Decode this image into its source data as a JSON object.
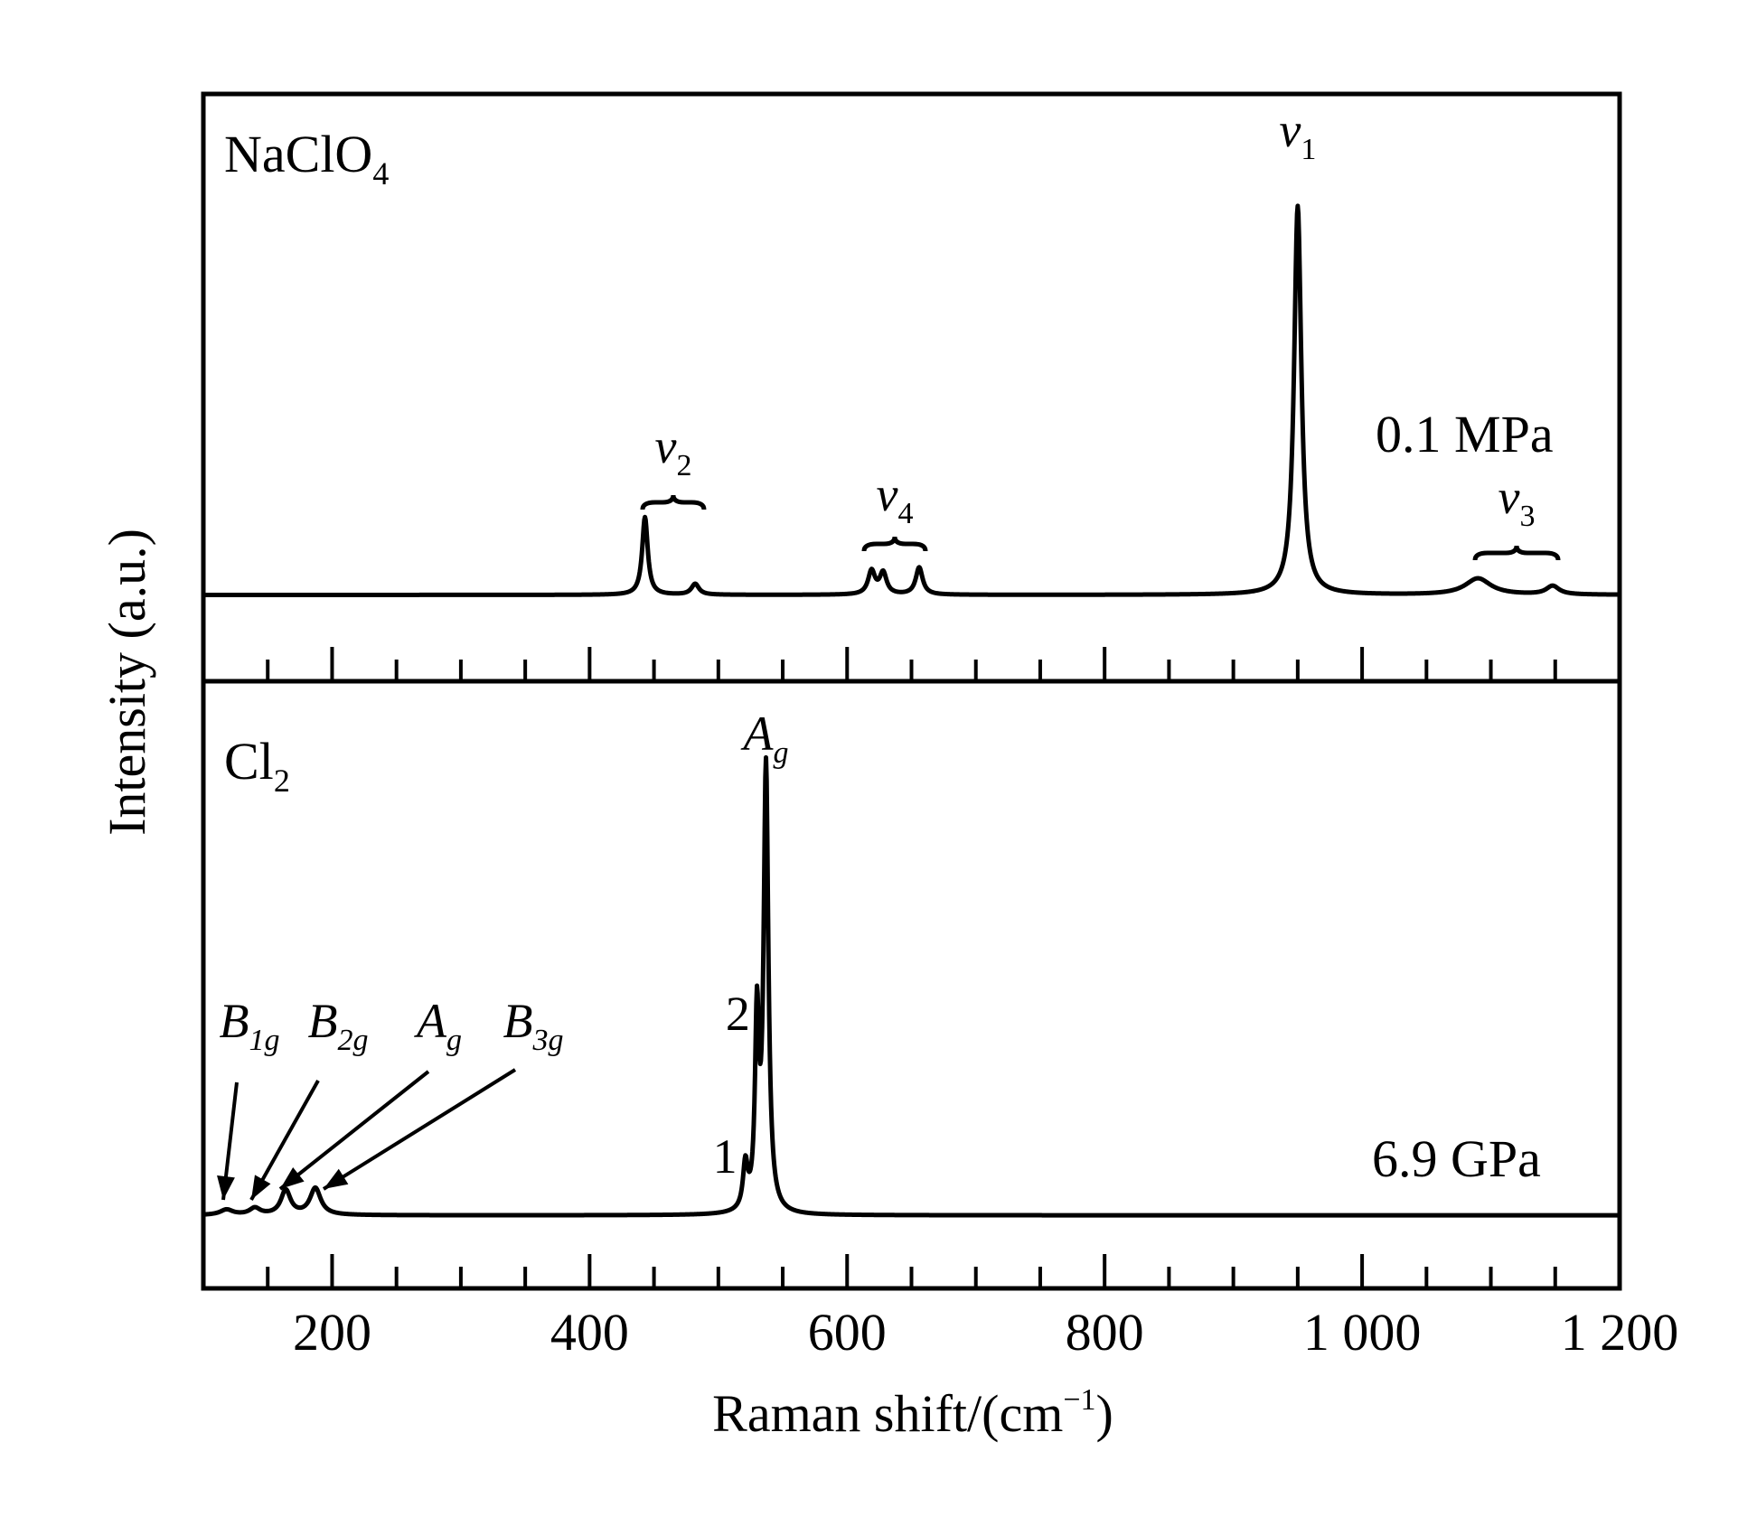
{
  "chart_data": {
    "type": "line",
    "xlabel": "Raman shift/(cm",
    "xlabel_sup": "−1",
    "xlabel_end": ")",
    "ylabel": "Intensity (a.u.)",
    "xlim": [
      100,
      1200
    ],
    "x_ticks": [
      200,
      400,
      600,
      800,
      1000,
      1200
    ],
    "x_tick_labels": [
      "200",
      "400",
      "600",
      "800",
      "1 000",
      "1 200"
    ],
    "minor_tick_step": 50,
    "grid": false,
    "panels": [
      {
        "id": "top",
        "sample_base": "NaClO",
        "sample_sub": "4",
        "condition": "0.1 MPa",
        "baseline": 0.05,
        "ylim": [
          0,
          1.15
        ],
        "peaks": [
          {
            "x": 443,
            "height": 0.2,
            "width": 2.6
          },
          {
            "x": 482,
            "height": 0.028,
            "width": 3.5
          },
          {
            "x": 619,
            "height": 0.06,
            "width": 3.2
          },
          {
            "x": 628,
            "height": 0.055,
            "width": 3.2
          },
          {
            "x": 656,
            "height": 0.07,
            "width": 3.2
          },
          {
            "x": 950,
            "height": 1.0,
            "width": 3.4
          },
          {
            "x": 1090,
            "height": 0.042,
            "width": 12
          },
          {
            "x": 1148,
            "height": 0.022,
            "width": 6
          }
        ],
        "annotations": [
          {
            "base": "ν",
            "sub": "2",
            "x": 465
          },
          {
            "base": "ν",
            "sub": "4",
            "x": 637
          },
          {
            "base": "ν",
            "sub": "1",
            "x": 950
          },
          {
            "base": "ν",
            "sub": "3",
            "x": 1120
          }
        ]
      },
      {
        "id": "bottom",
        "sample_base": "Cl",
        "sample_sub": "2",
        "condition": "6.9 GPa",
        "baseline": 0.02,
        "ylim": [
          0,
          1.0
        ],
        "peaks": [
          {
            "x": 118,
            "height": 0.012,
            "width": 6
          },
          {
            "x": 140,
            "height": 0.015,
            "width": 5
          },
          {
            "x": 164,
            "height": 0.055,
            "width": 4.5
          },
          {
            "x": 187,
            "height": 0.06,
            "width": 5
          },
          {
            "x": 521,
            "height": 0.1,
            "width": 2.2
          },
          {
            "x": 530,
            "height": 0.42,
            "width": 1.8
          },
          {
            "x": 537,
            "height": 1.0,
            "width": 2.2
          }
        ],
        "annotations": [
          {
            "base": "A",
            "sub": "g",
            "x": 537
          },
          {
            "base": "2",
            "x": 525
          },
          {
            "base": "1",
            "x": 515
          }
        ],
        "arrow_labels": [
          {
            "base": "B",
            "sub": "1g",
            "target_x": 118
          },
          {
            "base": "B",
            "sub": "2g",
            "target_x": 140
          },
          {
            "base": "A",
            "sub": "g",
            "target_x": 164
          },
          {
            "base": "B",
            "sub": "3g",
            "target_x": 187
          }
        ]
      }
    ]
  }
}
